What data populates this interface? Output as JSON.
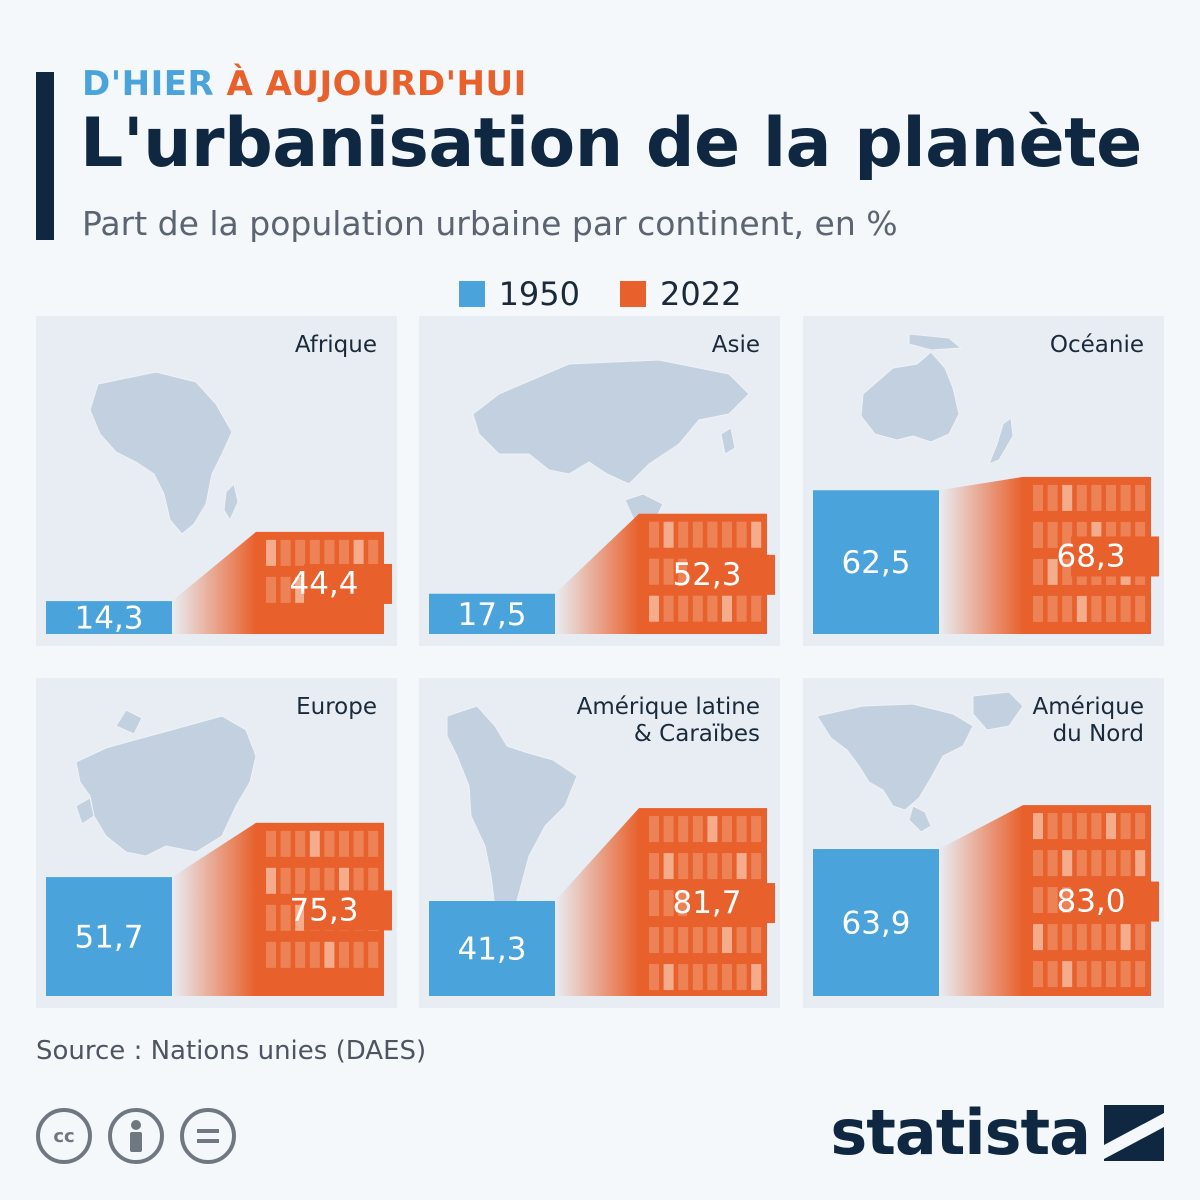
{
  "header": {
    "kicker_part1": "D'HIER",
    "kicker_part2": "À AUJOURD'HUI",
    "title": "L'urbanisation de la planète",
    "subtitle": "Part de la population urbaine par continent, en %"
  },
  "colors": {
    "c1950": "#4aa3da",
    "c2022": "#e8602c",
    "panel": "#e8edf3",
    "map": "#c3d0df"
  },
  "chart_data": {
    "type": "bar",
    "title": "L'urbanisation de la planète",
    "subtitle": "Part de la population urbaine par continent, en %",
    "series": [
      {
        "name": "1950",
        "values": [
          14.3,
          17.5,
          62.5,
          51.7,
          41.3,
          63.9
        ]
      },
      {
        "name": "2022",
        "values": [
          44.4,
          52.3,
          68.3,
          75.3,
          81.7,
          83.0
        ]
      }
    ],
    "ylim": [
      0,
      100
    ],
    "panels": [
      {
        "label_lines": [
          "Afrique"
        ],
        "map_icon": "africa-map-icon",
        "v1950": 14.3,
        "v2022": 44.4,
        "t1950": "14,3",
        "t2022": "44,4"
      },
      {
        "label_lines": [
          "Asie"
        ],
        "map_icon": "asia-map-icon",
        "v1950": 17.5,
        "v2022": 52.3,
        "t1950": "17,5",
        "t2022": "52,3"
      },
      {
        "label_lines": [
          "Océanie"
        ],
        "map_icon": "oceania-map-icon",
        "v1950": 62.5,
        "v2022": 68.3,
        "t1950": "62,5",
        "t2022": "68,3"
      },
      {
        "label_lines": [
          "Europe"
        ],
        "map_icon": "europe-map-icon",
        "v1950": 51.7,
        "v2022": 75.3,
        "t1950": "51,7",
        "t2022": "75,3"
      },
      {
        "label_lines": [
          "Amérique latine",
          "& Caraïbes"
        ],
        "map_icon": "latin-america-map-icon",
        "v1950": 41.3,
        "v2022": 81.7,
        "t1950": "41,3",
        "t2022": "81,7"
      },
      {
        "label_lines": [
          "Amérique",
          "du Nord"
        ],
        "map_icon": "north-america-map-icon",
        "v1950": 63.9,
        "v2022": 83.0,
        "t1950": "63,9",
        "t2022": "83,0"
      }
    ]
  },
  "legend": [
    {
      "label": "1950",
      "color": "#4aa3da"
    },
    {
      "label": "2022",
      "color": "#e8602c"
    }
  ],
  "footer": {
    "source": "Source : Nations unies (DAES)",
    "brand": "statista",
    "license_icons": [
      "cc-icon",
      "by-icon",
      "nd-icon"
    ]
  }
}
